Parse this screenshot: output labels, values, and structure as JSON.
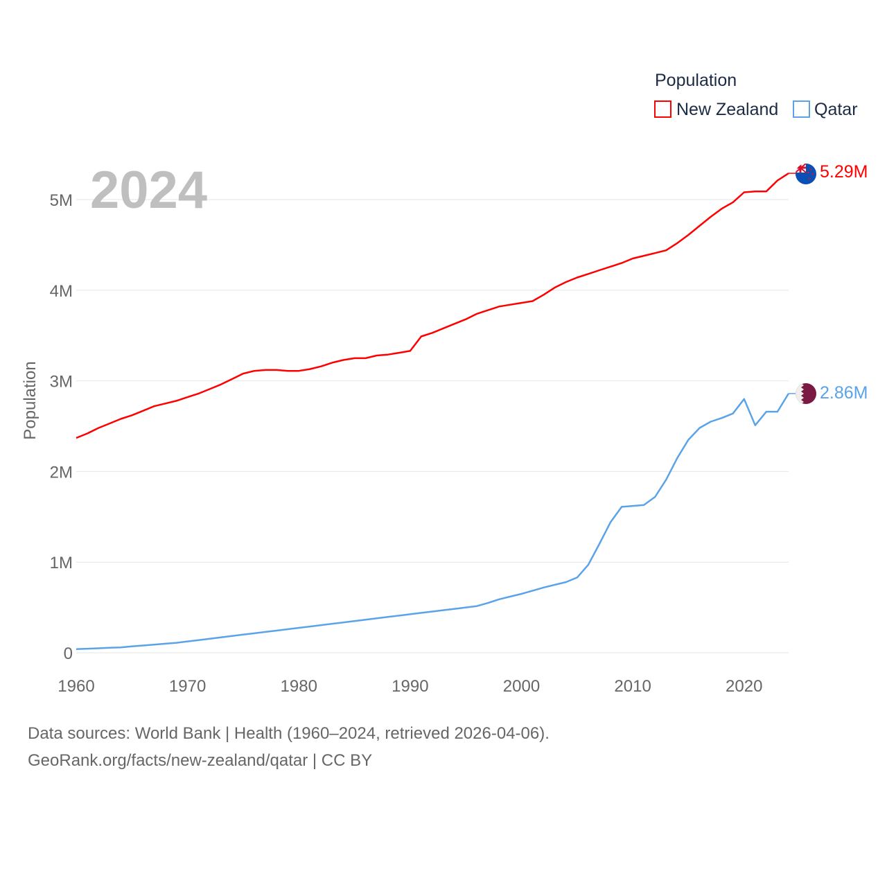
{
  "chart_data": {
    "type": "line",
    "title": "Population",
    "ylabel": "Population",
    "xlabel": "",
    "year_label": "2024",
    "xlim": [
      1960,
      2024
    ],
    "ylim": [
      0,
      5500000
    ],
    "x_ticks": [
      1960,
      1970,
      1980,
      1990,
      2000,
      2010,
      2020
    ],
    "y_ticks": [
      {
        "value": 0,
        "label": "0"
      },
      {
        "value": 1000000,
        "label": "1M"
      },
      {
        "value": 2000000,
        "label": "2M"
      },
      {
        "value": 3000000,
        "label": "3M"
      },
      {
        "value": 4000000,
        "label": "4M"
      },
      {
        "value": 5000000,
        "label": "5M"
      }
    ],
    "grid": true,
    "legend": {
      "title": "Population",
      "position": "top-right"
    },
    "x_start": 1960,
    "series": [
      {
        "name": "New Zealand",
        "color": "#ff0000",
        "end_label": "5.29M",
        "flag": "new-zealand-flag",
        "values_millions": [
          2.37,
          2.42,
          2.48,
          2.53,
          2.58,
          2.62,
          2.67,
          2.72,
          2.75,
          2.78,
          2.82,
          2.86,
          2.91,
          2.96,
          3.02,
          3.08,
          3.11,
          3.12,
          3.12,
          3.11,
          3.11,
          3.13,
          3.16,
          3.2,
          3.23,
          3.25,
          3.25,
          3.28,
          3.29,
          3.31,
          3.33,
          3.49,
          3.53,
          3.58,
          3.63,
          3.68,
          3.74,
          3.78,
          3.82,
          3.84,
          3.86,
          3.88,
          3.95,
          4.03,
          4.09,
          4.14,
          4.18,
          4.22,
          4.26,
          4.3,
          4.35,
          4.38,
          4.41,
          4.44,
          4.52,
          4.61,
          4.71,
          4.81,
          4.9,
          4.97,
          5.08,
          5.09,
          5.09,
          5.21,
          5.29
        ]
      },
      {
        "name": "Qatar",
        "color": "#5ba3e8",
        "end_label": "2.86M",
        "flag": "qatar-flag",
        "values_millions": [
          0.04,
          0.045,
          0.05,
          0.055,
          0.06,
          0.07,
          0.08,
          0.09,
          0.1,
          0.11,
          0.125,
          0.14,
          0.155,
          0.17,
          0.185,
          0.2,
          0.215,
          0.23,
          0.245,
          0.26,
          0.275,
          0.29,
          0.305,
          0.32,
          0.335,
          0.35,
          0.365,
          0.38,
          0.395,
          0.41,
          0.425,
          0.44,
          0.455,
          0.47,
          0.485,
          0.5,
          0.515,
          0.55,
          0.59,
          0.62,
          0.65,
          0.685,
          0.72,
          0.75,
          0.78,
          0.83,
          0.97,
          1.2,
          1.44,
          1.61,
          1.62,
          1.63,
          1.72,
          1.91,
          2.15,
          2.35,
          2.48,
          2.55,
          2.59,
          2.64,
          2.8,
          2.51,
          2.66,
          2.66,
          2.86
        ]
      }
    ]
  },
  "footer": {
    "line1": "Data sources: World Bank | Health (1960–2024, retrieved 2026-04-06).",
    "line2": "GeoRank.org/facts/new-zealand/qatar | CC BY"
  }
}
